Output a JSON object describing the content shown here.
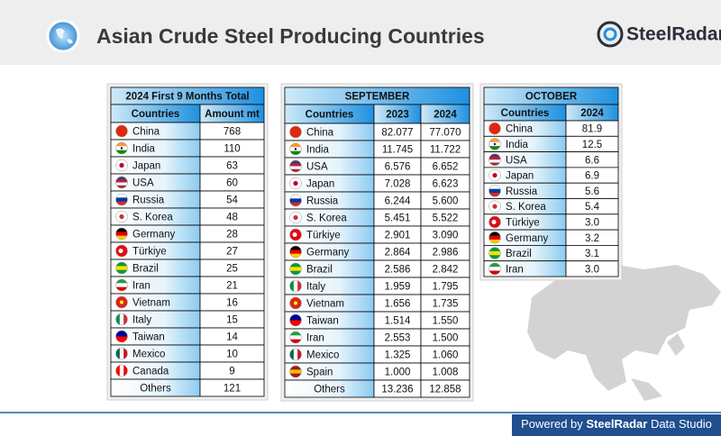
{
  "header": {
    "title": "Asian Crude Steel Producing Countries",
    "logo": "SteelRadar"
  },
  "tables": [
    {
      "title": "2024 First 9 Months Total",
      "columns": [
        "Countries",
        "Amount mt"
      ],
      "rows": [
        [
          "China",
          "768"
        ],
        [
          "India",
          "110"
        ],
        [
          "Japan",
          "63"
        ],
        [
          "USA",
          "60"
        ],
        [
          "Russia",
          "54"
        ],
        [
          "S. Korea",
          "48"
        ],
        [
          "Germany",
          "28"
        ],
        [
          "Türkiye",
          "27"
        ],
        [
          "Brazil",
          "25"
        ],
        [
          "Iran",
          "21"
        ],
        [
          "Vietnam",
          "16"
        ],
        [
          "Italy",
          "15"
        ],
        [
          "Taiwan",
          "14"
        ],
        [
          "Mexico",
          "10"
        ],
        [
          "Canada",
          "9"
        ],
        [
          "Others",
          "121"
        ]
      ]
    },
    {
      "title": "SEPTEMBER",
      "columns": [
        "Countries",
        "2023",
        "2024"
      ],
      "rows": [
        [
          "China",
          "82.077",
          "77.070"
        ],
        [
          "India",
          "11.745",
          "11.722"
        ],
        [
          "USA",
          "6.576",
          "6.652"
        ],
        [
          "Japan",
          "7.028",
          "6.623"
        ],
        [
          "Russia",
          "6.244",
          "5.600"
        ],
        [
          "S. Korea",
          "5.451",
          "5.522"
        ],
        [
          "Türkiye",
          "2.901",
          "3.090"
        ],
        [
          "Germany",
          "2.864",
          "2.986"
        ],
        [
          "Brazil",
          "2.586",
          "2.842"
        ],
        [
          "Italy",
          "1.959",
          "1.795"
        ],
        [
          "Vietnam",
          "1.656",
          "1.735"
        ],
        [
          "Taiwan",
          "1.514",
          "1.550"
        ],
        [
          "Iran",
          "2.553",
          "1.500"
        ],
        [
          "Mexico",
          "1.325",
          "1.060"
        ],
        [
          "Spain",
          "1.000",
          "1.008"
        ],
        [
          "Others",
          "13.236",
          "12.858"
        ]
      ]
    },
    {
      "title": "OCTOBER",
      "columns": [
        "Countries",
        "2024"
      ],
      "rows": [
        [
          "China",
          "81.9"
        ],
        [
          "India",
          "12.5"
        ],
        [
          "USA",
          "6.6"
        ],
        [
          "Japan",
          "6.9"
        ],
        [
          "Russia",
          "5.6"
        ],
        [
          "S. Korea",
          "5.4"
        ],
        [
          "Türkiye",
          "3.0"
        ],
        [
          "Germany",
          "3.2"
        ],
        [
          "Brazil",
          "3.1"
        ],
        [
          "Iran",
          "3.0"
        ]
      ]
    }
  ],
  "footer": {
    "prefix": "Powered by",
    "brand": "SteelRadar",
    "suffix": "Data Studio"
  }
}
